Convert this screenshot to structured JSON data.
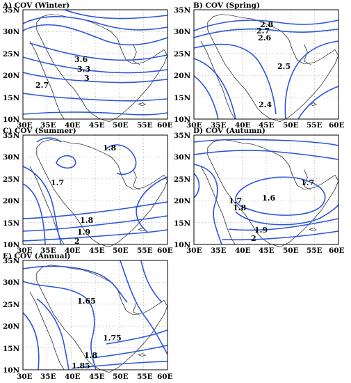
{
  "figure": {
    "panels": [
      {
        "id": "A",
        "title": "A) COV (Winter)",
        "contour_labels": [
          "3.6",
          "3.3",
          "3",
          "2.7"
        ]
      },
      {
        "id": "B",
        "title": "B) COV (Spring)",
        "contour_labels": [
          "2.8",
          "2.7",
          "2.6",
          "2.5",
          "2.4"
        ]
      },
      {
        "id": "C",
        "title": "C) COV (Summer)",
        "contour_labels": [
          "1.8",
          "1.7",
          "1.8",
          "1.9",
          "2"
        ]
      },
      {
        "id": "D",
        "title": "D) COV (Autumn)",
        "contour_labels": [
          "1.7",
          "1.7",
          "1.6",
          "1.8",
          "1.9",
          "2"
        ]
      },
      {
        "id": "E",
        "title": "E) COV (Annual)",
        "contour_labels": [
          "1.65",
          "1.75",
          "1.8",
          "1.85"
        ]
      }
    ],
    "x_ticks": [
      "30E",
      "35E",
      "40E",
      "45E",
      "50E",
      "55E",
      "60E"
    ],
    "y_ticks": [
      "35N",
      "30N",
      "25N",
      "20N",
      "15N",
      "10N"
    ],
    "colors": {
      "contour": "#2a55e0",
      "coastline": "#222222",
      "grid": "#9a9a9a",
      "frame": "#000000"
    }
  }
}
